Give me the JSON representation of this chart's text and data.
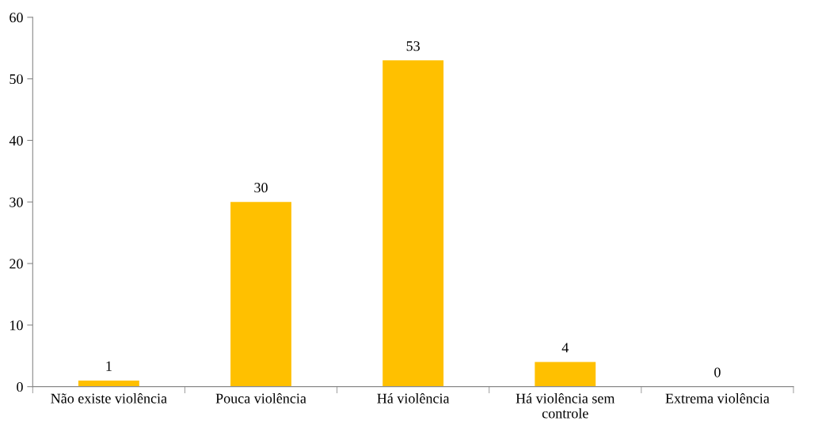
{
  "chart_data": {
    "type": "bar",
    "categories": [
      "Não existe violência",
      "Pouca violência",
      "Há violência",
      "Há violência sem\ncontrole",
      "Extrema violência"
    ],
    "values": [
      1,
      30,
      53,
      4,
      0
    ],
    "color": "#ffc000",
    "ylim": [
      0,
      60
    ],
    "yticks": [
      0,
      10,
      20,
      30,
      40,
      50,
      60
    ],
    "grid": false,
    "data_labels": true
  }
}
